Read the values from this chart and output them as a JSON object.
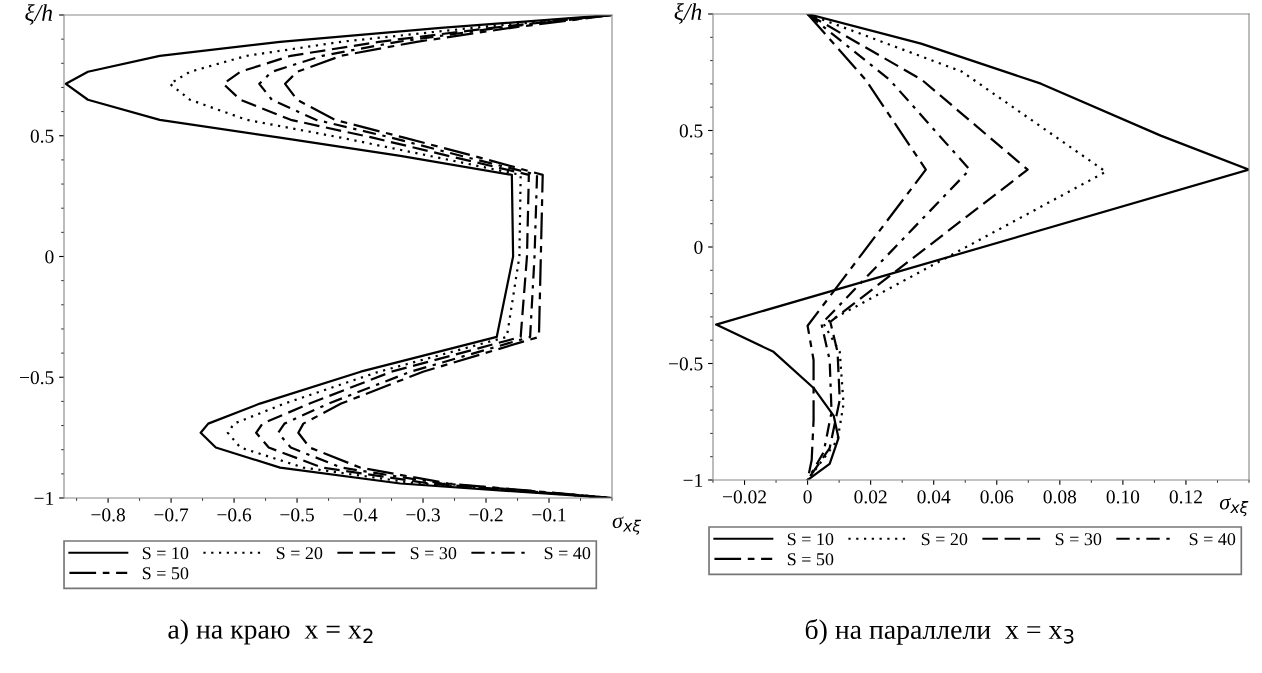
{
  "chart_data": [
    {
      "type": "line",
      "title": "а) на краю  x = x$_{2}$",
      "xlabel": "σ$_{xξ}$",
      "ylabel": "ξ/h",
      "xlim": [
        -0.87,
        0
      ],
      "xticks": [
        {
          "value": -0.8,
          "label": "−0.8"
        },
        {
          "value": -0.7,
          "label": "−0.7"
        },
        {
          "value": -0.6,
          "label": "−0.6"
        },
        {
          "value": -0.5,
          "label": "−0.5"
        },
        {
          "value": -0.4,
          "label": "−0.4"
        },
        {
          "value": -0.3,
          "label": "−0.3"
        },
        {
          "value": -0.2,
          "label": "−0.2"
        },
        {
          "value": -0.1,
          "label": "−0.1"
        }
      ],
      "ylim": [
        -1,
        1
      ],
      "yticks": [
        {
          "value": -1,
          "label": "−1"
        },
        {
          "value": -0.5,
          "label": "−0.5"
        },
        0,
        0.5,
        {
          "value": 1,
          "label": null
        }
      ],
      "grid": false,
      "legend": "bottom",
      "marker": "none",
      "series": [
        {
          "name": "S = 10",
          "color": "#000000",
          "line_style": "solid",
          "x": [
            0,
            -0.272,
            -0.527,
            -0.718,
            -0.832,
            -0.867,
            -0.832,
            -0.718,
            -0.527,
            -0.336,
            -0.159,
            -0.157,
            -0.183,
            -0.399,
            -0.559,
            -0.641,
            -0.653,
            -0.629,
            -0.527,
            -0.336,
            0
          ],
          "values": [
            1,
            0.947,
            0.889,
            0.831,
            0.765,
            0.715,
            0.649,
            0.566,
            0.492,
            0.417,
            0.338,
            0,
            -0.333,
            -0.477,
            -0.609,
            -0.692,
            -0.73,
            -0.791,
            -0.874,
            -0.94,
            -1
          ]
        },
        {
          "name": "S = 20",
          "color": "#000000",
          "line_style": "dotted",
          "x": [
            0,
            -0.22,
            -0.43,
            -0.58,
            -0.67,
            -0.702,
            -0.67,
            -0.58,
            -0.43,
            -0.29,
            -0.145,
            -0.147,
            -0.167,
            -0.37,
            -0.52,
            -0.6,
            -0.61,
            -0.59,
            -0.49,
            -0.31,
            0
          ],
          "values": [
            1,
            0.947,
            0.889,
            0.831,
            0.765,
            0.715,
            0.649,
            0.566,
            0.492,
            0.417,
            0.338,
            0,
            -0.333,
            -0.477,
            -0.609,
            -0.692,
            -0.73,
            -0.791,
            -0.874,
            -0.94,
            -1
          ]
        },
        {
          "name": "S = 30",
          "color": "#000000",
          "line_style": "dashed",
          "x": [
            0,
            -0.19,
            -0.37,
            -0.51,
            -0.59,
            -0.617,
            -0.59,
            -0.51,
            -0.38,
            -0.26,
            -0.132,
            -0.135,
            -0.145,
            -0.35,
            -0.48,
            -0.555,
            -0.565,
            -0.545,
            -0.46,
            -0.29,
            0
          ],
          "values": [
            1,
            0.947,
            0.889,
            0.831,
            0.765,
            0.715,
            0.649,
            0.566,
            0.492,
            0.417,
            0.338,
            0,
            -0.333,
            -0.477,
            -0.609,
            -0.692,
            -0.73,
            -0.791,
            -0.874,
            -0.94,
            -1
          ]
        },
        {
          "name": "S = 40",
          "color": "#000000",
          "line_style": "dashdot",
          "x": [
            0,
            -0.18,
            -0.34,
            -0.46,
            -0.54,
            -0.56,
            -0.54,
            -0.47,
            -0.35,
            -0.24,
            -0.119,
            -0.123,
            -0.13,
            -0.32,
            -0.45,
            -0.52,
            -0.53,
            -0.51,
            -0.43,
            -0.27,
            0
          ],
          "values": [
            1,
            0.947,
            0.889,
            0.831,
            0.765,
            0.715,
            0.649,
            0.566,
            0.492,
            0.417,
            0.338,
            0,
            -0.333,
            -0.477,
            -0.609,
            -0.692,
            -0.73,
            -0.791,
            -0.874,
            -0.94,
            -1
          ]
        },
        {
          "name": "S = 50",
          "color": "#000000",
          "line_style": "longdashdot",
          "x": [
            0,
            -0.16,
            -0.31,
            -0.43,
            -0.5,
            -0.519,
            -0.5,
            -0.44,
            -0.33,
            -0.22,
            -0.11,
            -0.113,
            -0.116,
            -0.3,
            -0.43,
            -0.49,
            -0.498,
            -0.48,
            -0.4,
            -0.26,
            0
          ],
          "values": [
            1,
            0.947,
            0.889,
            0.831,
            0.765,
            0.715,
            0.649,
            0.566,
            0.492,
            0.417,
            0.338,
            0,
            -0.333,
            -0.477,
            -0.609,
            -0.692,
            -0.73,
            -0.791,
            -0.874,
            -0.94,
            -1
          ]
        }
      ]
    },
    {
      "type": "line",
      "title": "б) на параллели  x = x$_{3}$",
      "xlabel": "σ$_{xξ}$",
      "ylabel": "ξ/h",
      "xlim": [
        -0.03,
        0.14
      ],
      "xticks": [
        {
          "value": -0.02,
          "label": "−0.02"
        },
        0,
        {
          "value": 0.02,
          "label": "0.02"
        },
        {
          "value": 0.04,
          "label": "0.04"
        },
        {
          "value": 0.06,
          "label": "0.06"
        },
        {
          "value": 0.08,
          "label": "0.08"
        },
        {
          "value": 0.1,
          "label": "0.10"
        },
        {
          "value": 0.12,
          "label": "0.12"
        }
      ],
      "ylim": [
        -1,
        1
      ],
      "yticks": [
        {
          "value": -1,
          "label": "−1"
        },
        {
          "value": -0.5,
          "label": "−0.5"
        },
        0,
        0.5,
        {
          "value": 1,
          "label": null
        }
      ],
      "grid": false,
      "legend": "bottom",
      "marker": "none",
      "series": [
        {
          "name": "S = 10",
          "color": "#000000",
          "line_style": "solid",
          "x": [
            0,
            0.036,
            0.074,
            0.112,
            0.14,
            -0.029,
            -0.0108,
            0.0019,
            0.0083,
            0.0098,
            0.007,
            0
          ],
          "values": [
            1,
            0.873,
            0.701,
            0.478,
            0.332,
            -0.333,
            -0.45,
            -0.605,
            -0.725,
            -0.82,
            -0.931,
            -1
          ]
        },
        {
          "name": "S = 20",
          "color": "#000000",
          "line_style": "dotted",
          "x": [
            0,
            0.0489,
            0.0946,
            0.0051,
            0.0102,
            0.0114,
            0.0095,
            0
          ],
          "values": [
            1,
            0.753,
            0.323,
            -0.33,
            -0.45,
            -0.674,
            -0.828,
            -1
          ]
        },
        {
          "name": "S = 30",
          "color": "#000000",
          "line_style": "dashed",
          "x": [
            0,
            0.0362,
            0.0698,
            0.0072,
            0.0095,
            0.0102,
            0.007,
            0
          ],
          "values": [
            1,
            0.718,
            0.332,
            -0.321,
            -0.45,
            -0.656,
            -0.863,
            -1
          ]
        },
        {
          "name": "S = 40",
          "color": "#000000",
          "line_style": "dashdot",
          "x": [
            0,
            0.026,
            0.0514,
            0.0044,
            0.007,
            0.0076,
            0.0051,
            0
          ],
          "values": [
            1,
            0.718,
            0.332,
            -0.33,
            -0.485,
            -0.708,
            -0.88,
            -1
          ]
        },
        {
          "name": "S = 50",
          "color": "#000000",
          "line_style": "longdashdot",
          "x": [
            0,
            0.0184,
            0.0375,
            0,
            0.0019,
            0.0019,
            0.0013,
            0
          ],
          "values": [
            1,
            0.718,
            0.332,
            -0.338,
            -0.485,
            -0.742,
            -0.914,
            -1
          ]
        }
      ]
    }
  ]
}
